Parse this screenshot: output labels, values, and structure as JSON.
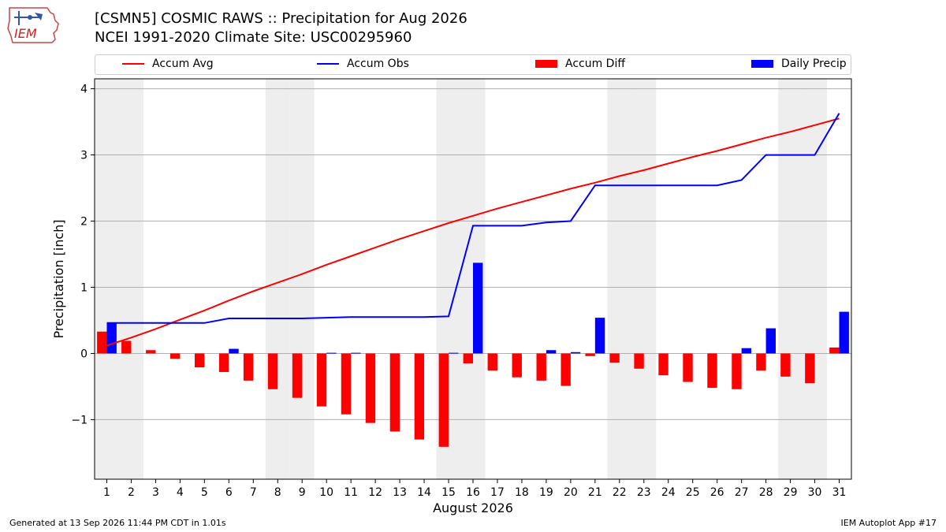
{
  "logo_text": "IEM",
  "header": {
    "title_line1": "[CSMN5] COSMIC RAWS :: Precipitation for Aug 2026",
    "title_line2": "NCEI 1991-2020 Climate Site: USC00295960"
  },
  "legend": {
    "accum_avg": "Accum Avg",
    "accum_obs": "Accum Obs",
    "accum_diff": "Accum Diff",
    "daily_precip": "Daily Precip"
  },
  "footer": {
    "left": "Generated at 13 Sep 2026 11:44 PM CDT in 1.01s",
    "right": "IEM Autoplot App #17"
  },
  "colors": {
    "accum_avg": "#ff0000",
    "accum_obs": "#0000ff",
    "accum_diff": "#ff0000",
    "daily_precip": "#0000ff",
    "weekend_shade": "#eeeeee"
  },
  "chart_data": {
    "type": "bar",
    "xlabel": "August 2026",
    "ylabel": "Precipitation [inch]",
    "ylim": [
      -1.9,
      4.15
    ],
    "yticks": [
      -1,
      0,
      1,
      2,
      3,
      4
    ],
    "ytick_labels": [
      "−1",
      "0",
      "1",
      "2",
      "3",
      "4"
    ],
    "grid": true,
    "legend_position": "top",
    "x": [
      1,
      2,
      3,
      4,
      5,
      6,
      7,
      8,
      9,
      10,
      11,
      12,
      13,
      14,
      15,
      16,
      17,
      18,
      19,
      20,
      21,
      22,
      23,
      24,
      25,
      26,
      27,
      28,
      29,
      30,
      31
    ],
    "shaded_days": [
      1,
      2,
      8,
      9,
      15,
      16,
      22,
      23,
      29,
      30
    ],
    "series": [
      {
        "name": "Accum Avg",
        "kind": "line",
        "values": [
          0.12,
          0.24,
          0.37,
          0.51,
          0.65,
          0.8,
          0.94,
          1.07,
          1.2,
          1.34,
          1.47,
          1.6,
          1.73,
          1.85,
          1.97,
          2.08,
          2.19,
          2.29,
          2.39,
          2.49,
          2.58,
          2.68,
          2.77,
          2.87,
          2.97,
          3.06,
          3.16,
          3.26,
          3.35,
          3.45,
          3.55
        ]
      },
      {
        "name": "Accum Obs",
        "kind": "line",
        "values": [
          0.46,
          0.46,
          0.46,
          0.46,
          0.46,
          0.53,
          0.53,
          0.53,
          0.53,
          0.54,
          0.55,
          0.55,
          0.55,
          0.55,
          0.56,
          1.93,
          1.93,
          1.93,
          1.98,
          2.0,
          2.54,
          2.54,
          2.54,
          2.54,
          2.54,
          2.54,
          2.62,
          3.0,
          3.0,
          3.0,
          3.63
        ]
      },
      {
        "name": "Accum Diff",
        "kind": "bar",
        "values": [
          0.33,
          0.19,
          0.05,
          -0.08,
          -0.21,
          -0.28,
          -0.41,
          -0.54,
          -0.67,
          -0.8,
          -0.92,
          -1.05,
          -1.18,
          -1.3,
          -1.41,
          -0.15,
          -0.26,
          -0.36,
          -0.41,
          -0.49,
          -0.04,
          -0.14,
          -0.23,
          -0.33,
          -0.43,
          -0.52,
          -0.54,
          -0.26,
          -0.35,
          -0.45,
          0.09
        ]
      },
      {
        "name": "Daily Precip",
        "kind": "bar",
        "values": [
          0.46,
          0,
          0,
          0,
          0,
          0.07,
          0,
          0,
          0,
          0.01,
          0.01,
          0,
          0,
          0,
          0.01,
          1.37,
          0,
          0,
          0.05,
          0.02,
          0.54,
          0,
          0,
          0,
          0,
          0,
          0.08,
          0.38,
          0,
          0,
          0.63
        ]
      }
    ]
  }
}
